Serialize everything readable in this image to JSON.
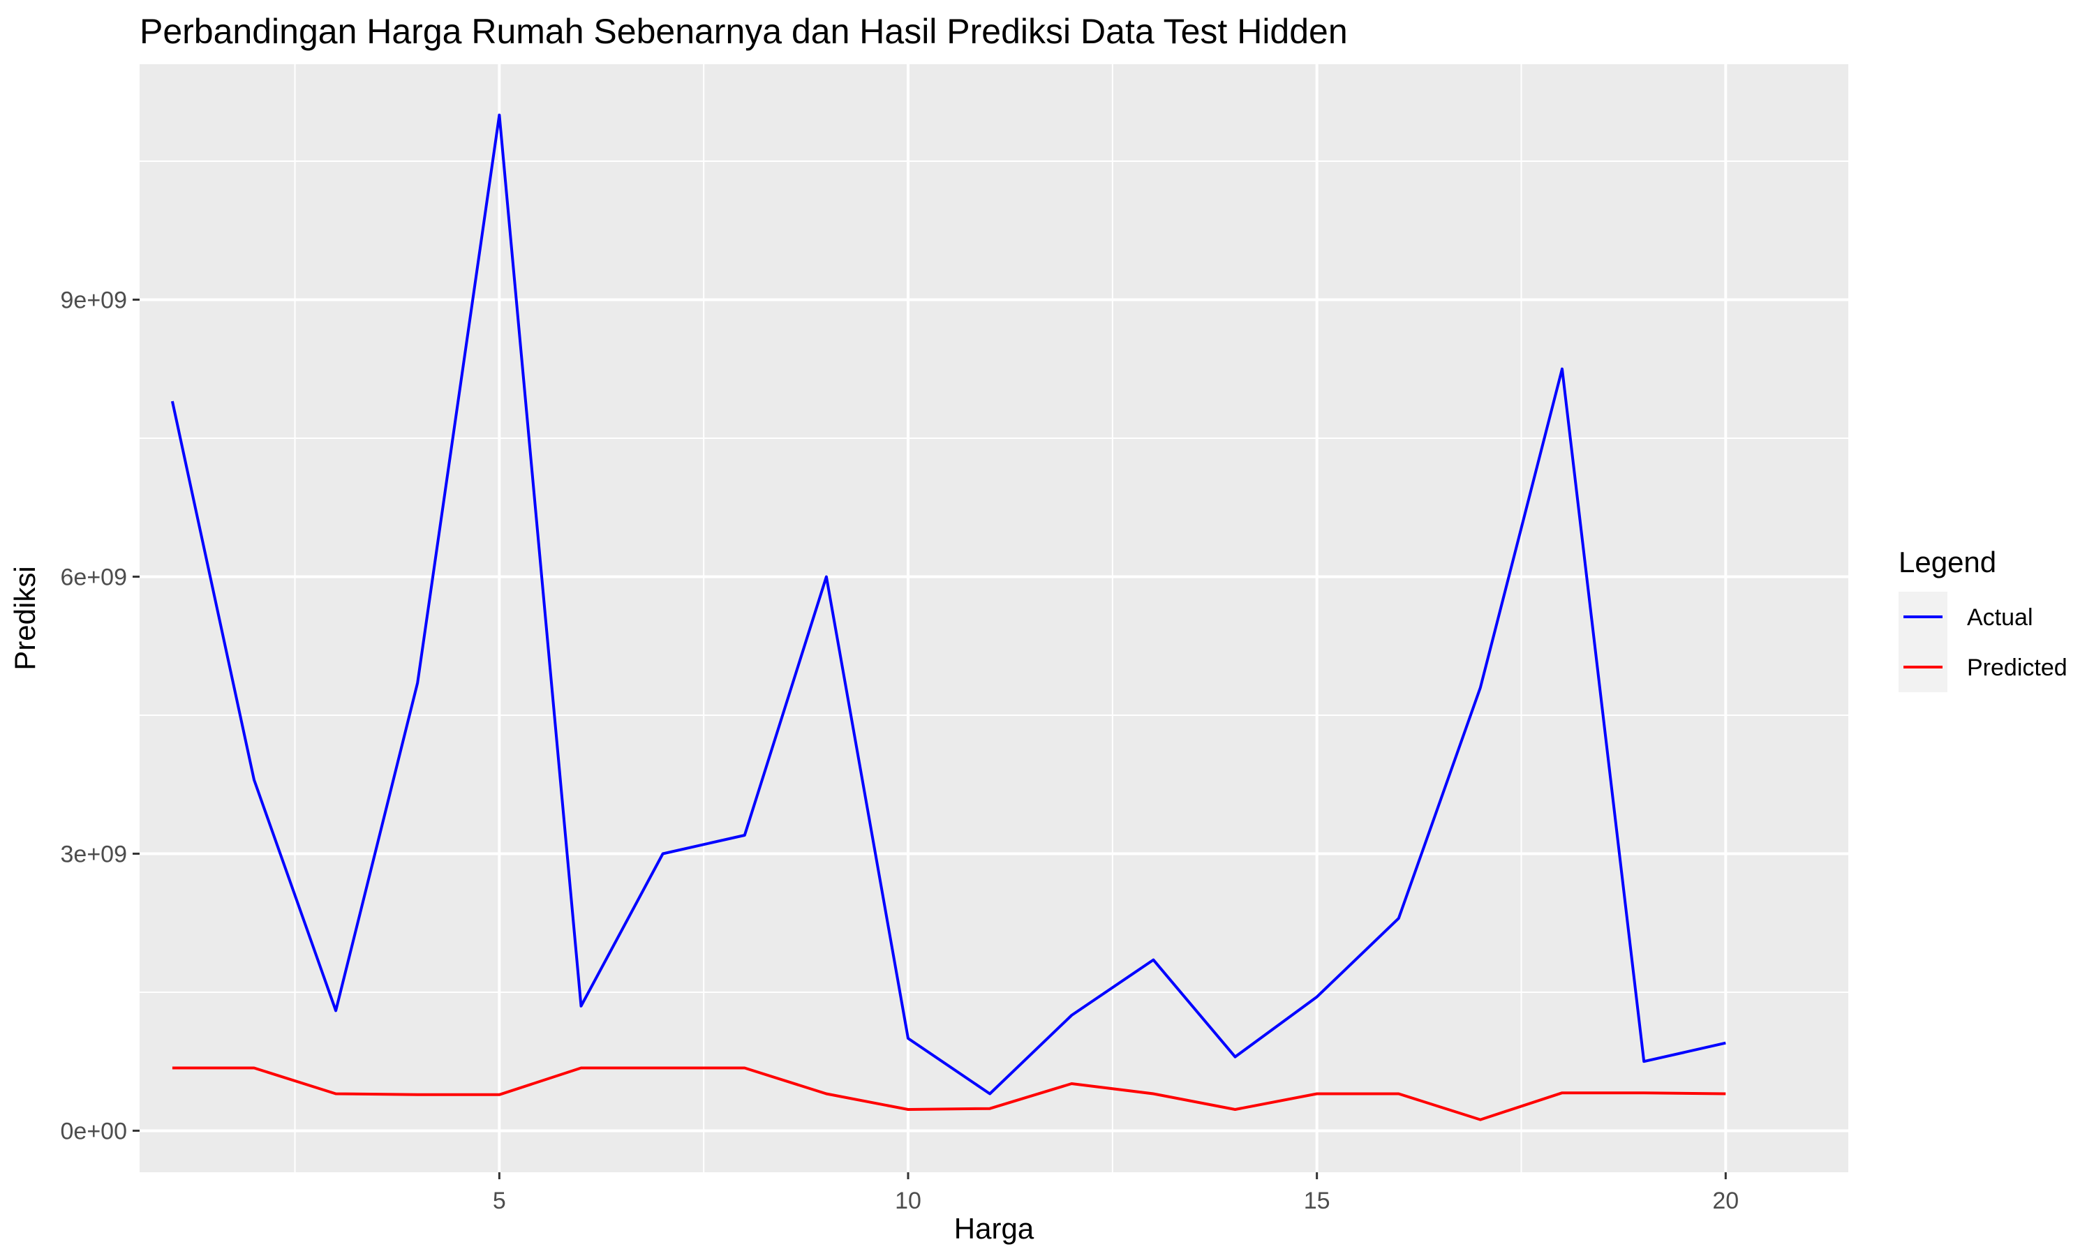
{
  "chart_data": {
    "type": "line",
    "title": "Perbandingan Harga Rumah Sebenarnya dan Hasil Prediksi Data Test Hidden",
    "xlabel": "Harga",
    "ylabel": "Prediksi",
    "x": [
      1,
      2,
      3,
      4,
      5,
      6,
      7,
      8,
      9,
      10,
      11,
      12,
      13,
      14,
      15,
      16,
      17,
      18,
      19,
      20
    ],
    "series": [
      {
        "name": "Actual",
        "color": "#0000ff",
        "values": [
          7900000000.0,
          3800000000.0,
          1300000000.0,
          4850000000.0,
          11000000000.0,
          1350000000.0,
          3000000000.0,
          3200000000.0,
          6000000000.0,
          1000000000.0,
          400000000.0,
          1250000000.0,
          1850000000.0,
          800000000.0,
          1450000000.0,
          2300000000.0,
          4800000000.0,
          8250000000.0,
          750000000.0,
          950000000.0
        ]
      },
      {
        "name": "Predicted",
        "color": "#ff0000",
        "values": [
          680000000.0,
          680000000.0,
          400000000.0,
          390000000.0,
          390000000.0,
          680000000.0,
          680000000.0,
          680000000.0,
          400000000.0,
          230000000.0,
          240000000.0,
          510000000.0,
          400000000.0,
          230000000.0,
          400000000.0,
          400000000.0,
          120000000.0,
          410000000.0,
          410000000.0,
          400000000.0
        ]
      }
    ],
    "xlim": [
      0.6,
      21.5
    ],
    "ylim": [
      -450000000.0,
      11550000000.0
    ],
    "x_ticks": [
      5,
      10,
      15,
      20
    ],
    "x_tick_labels": [
      "5",
      "10",
      "15",
      "20"
    ],
    "y_ticks": [
      0,
      3000000000.0,
      6000000000.0,
      9000000000.0
    ],
    "y_tick_labels": [
      "0e+00",
      "3e+09",
      "6e+09",
      "9e+09"
    ],
    "grid": true,
    "legend": {
      "title": "Legend",
      "position": "right",
      "entries": [
        "Actual",
        "Predicted"
      ]
    },
    "panel_color": "#ebebeb",
    "grid_color": "#ffffff"
  }
}
